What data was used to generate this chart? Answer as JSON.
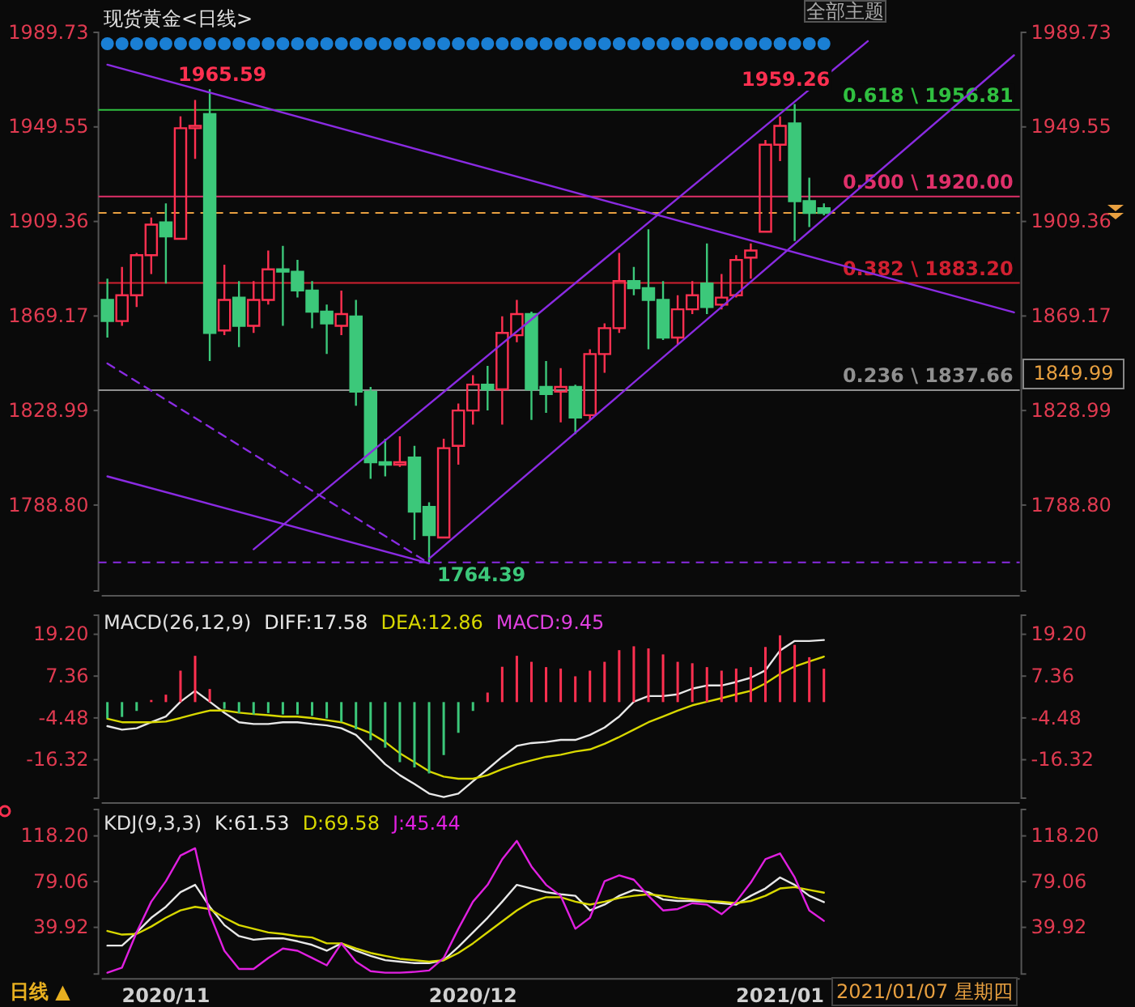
{
  "chart_data": [
    {
      "type": "candlestick",
      "title": "现货黄金<日线>",
      "tick_labels": "y",
      "categories": [
        null,
        null,
        null,
        null,
        "2020/11",
        null,
        null,
        null,
        null,
        null,
        null,
        null,
        null,
        null,
        null,
        null,
        null,
        null,
        null,
        null,
        null,
        null,
        null,
        null,
        null,
        "2020/12",
        null,
        null,
        null,
        null,
        null,
        null,
        null,
        null,
        null,
        null,
        null,
        null,
        null,
        null,
        null,
        null,
        null,
        null,
        null,
        null,
        "2021/01",
        null,
        null,
        null,
        null,
        null,
        null,
        null,
        null,
        null,
        null,
        null,
        null,
        null,
        null,
        null,
        null
      ],
      "ohlc": [
        [
          1876,
          1885,
          1860,
          1867
        ],
        [
          1867,
          1890,
          1865,
          1878
        ],
        [
          1878,
          1896,
          1873,
          1895
        ],
        [
          1895,
          1911,
          1887,
          1908
        ],
        [
          1909,
          1917,
          1883,
          1903
        ],
        [
          1902,
          1954,
          1902,
          1949
        ],
        [
          1949,
          1961,
          1936,
          1950
        ],
        [
          1955,
          1965.59,
          1850,
          1862
        ],
        [
          1863,
          1891,
          1861,
          1876
        ],
        [
          1877,
          1884,
          1856,
          1865
        ],
        [
          1865,
          1884,
          1862,
          1876
        ],
        [
          1876,
          1897,
          1874,
          1889
        ],
        [
          1889,
          1899,
          1865,
          1888
        ],
        [
          1888,
          1893,
          1877,
          1880
        ],
        [
          1880,
          1884,
          1864,
          1871
        ],
        [
          1871,
          1874,
          1853,
          1866
        ],
        [
          1865,
          1880,
          1861,
          1870
        ],
        [
          1869,
          1876,
          1831,
          1837
        ],
        [
          1837,
          1839,
          1800,
          1807
        ],
        [
          1807,
          1817,
          1801,
          1806
        ],
        [
          1806,
          1818,
          1805,
          1807
        ],
        [
          1809,
          1814,
          1774,
          1786
        ],
        [
          1788,
          1790,
          1764.39,
          1776
        ],
        [
          1775,
          1817,
          1775,
          1813
        ],
        [
          1814,
          1832,
          1806,
          1829
        ],
        [
          1829,
          1844,
          1823,
          1840
        ],
        [
          1840,
          1848,
          1829,
          1838
        ],
        [
          1838,
          1869,
          1823,
          1862
        ],
        [
          1861,
          1876,
          1858,
          1870
        ],
        [
          1870,
          1871,
          1825,
          1838
        ],
        [
          1839,
          1850,
          1828,
          1836
        ],
        [
          1837,
          1847,
          1824,
          1839
        ],
        [
          1839,
          1840,
          1819,
          1826
        ],
        [
          1827,
          1855,
          1825,
          1853
        ],
        [
          1853,
          1866,
          1845,
          1864
        ],
        [
          1864,
          1896,
          1862,
          1884
        ],
        [
          1884,
          1890,
          1878,
          1881
        ],
        [
          1881,
          1906,
          1855,
          1876
        ],
        [
          1876,
          1884,
          1859,
          1860
        ],
        [
          1860,
          1878,
          1857,
          1872
        ],
        [
          1872,
          1884,
          1870,
          1878
        ],
        [
          1883,
          1900,
          1870,
          1873
        ],
        [
          1874,
          1887,
          1872,
          1877
        ],
        [
          1878,
          1895,
          1877,
          1893
        ],
        [
          1894,
          1900,
          1885,
          1897
        ],
        [
          1905,
          1944,
          1905,
          1942
        ],
        [
          1942,
          1954,
          1935,
          1950
        ],
        [
          1951,
          1959.26,
          1901,
          1918
        ],
        [
          1918,
          1928,
          1907,
          1913
        ],
        [
          1915,
          1917,
          1912,
          1913
        ],
        null,
        null,
        null,
        null,
        null,
        null,
        null,
        null,
        null,
        null,
        null,
        null,
        null
      ],
      "colors": [
        "#3cc87a",
        "#ff3050",
        "#ff3050",
        "#ff3050",
        "#3cc87a",
        "#ff3050",
        "#ff3050",
        "#3cc87a",
        "#ff3050",
        "#3cc87a",
        "#ff3050",
        "#ff3050",
        "#3cc87a",
        "#3cc87a",
        "#3cc87a",
        "#3cc87a",
        "#ff3050",
        "#3cc87a",
        "#3cc87a",
        "#3cc87a",
        "#ff3050",
        "#3cc87a",
        "#3cc87a",
        "#ff3050",
        "#ff3050",
        "#ff3050",
        "#3cc87a",
        "#ff3050",
        "#ff3050",
        "#3cc87a",
        "#3cc87a",
        "#ff3050",
        "#3cc87a",
        "#ff3050",
        "#ff3050",
        "#ff3050",
        "#3cc87a",
        "#3cc87a",
        "#3cc87a",
        "#ff3050",
        "#ff3050",
        "#3cc87a",
        "#ff3050",
        "#ff3050",
        "#ff3050",
        "#ff3050",
        "#ff3050",
        "#3cc87a",
        "#3cc87a",
        "#3cc87a",
        null,
        null,
        null,
        null,
        null,
        null,
        null,
        null,
        null,
        null,
        null,
        null,
        null
      ],
      "series": [
        {
          "type": "line",
          "color": "#8a2be2",
          "values": [
            1976,
            null,
            null,
            null,
            null,
            null,
            null,
            null,
            null,
            null,
            null,
            null,
            null,
            null,
            null,
            null,
            null,
            null,
            null,
            null,
            null,
            null,
            null,
            null,
            null,
            null,
            null,
            null,
            null,
            null,
            null,
            null,
            null,
            null,
            null,
            null,
            null,
            null,
            null,
            null,
            null,
            null,
            null,
            null,
            null,
            null,
            null,
            null,
            null,
            null,
            null,
            null,
            null,
            null,
            null,
            null,
            null,
            null,
            null,
            null,
            null,
            null,
            1870.7
          ]
        },
        {
          "type": "line",
          "color": "#8a2be2",
          "values": [
            1801,
            null,
            null,
            null,
            null,
            null,
            null,
            null,
            null,
            null,
            null,
            null,
            null,
            null,
            null,
            null,
            null,
            null,
            null,
            null,
            null,
            null,
            1764,
            null,
            null,
            null,
            null,
            null,
            null,
            null,
            null,
            null,
            null,
            null,
            null,
            null,
            null,
            null,
            null,
            null,
            null,
            null,
            null,
            null,
            null,
            null,
            null,
            null,
            null,
            null,
            null,
            null,
            null,
            null,
            null,
            null,
            null,
            null,
            null,
            null,
            null,
            null,
            null
          ]
        },
        {
          "type": "line",
          "color": "#8a2be2",
          "line_style": "dashed",
          "values": [
            1849,
            null,
            null,
            null,
            null,
            null,
            null,
            null,
            null,
            null,
            null,
            null,
            null,
            null,
            null,
            null,
            null,
            null,
            null,
            null,
            null,
            null,
            1764,
            null,
            null,
            null,
            null,
            null,
            null,
            null,
            null,
            null,
            null,
            null,
            null,
            null,
            null,
            null,
            null,
            null,
            null,
            null,
            null,
            null,
            null,
            null,
            null,
            null,
            null,
            null,
            null,
            null,
            null,
            null,
            null,
            null,
            null,
            null,
            null,
            null,
            null,
            null,
            null
          ]
        },
        {
          "type": "line",
          "color": "#8a2be2",
          "values": [
            null,
            null,
            null,
            null,
            null,
            null,
            null,
            null,
            null,
            null,
            1770,
            null,
            null,
            null,
            null,
            null,
            null,
            null,
            null,
            null,
            null,
            null,
            null,
            null,
            null,
            null,
            null,
            null,
            null,
            null,
            null,
            null,
            null,
            null,
            null,
            null,
            null,
            null,
            null,
            null,
            null,
            null,
            null,
            null,
            null,
            null,
            null,
            null,
            null,
            null,
            null,
            null,
            1986,
            null,
            null,
            null,
            null,
            null,
            null,
            null,
            null,
            null,
            null
          ]
        },
        {
          "type": "line",
          "color": "#8a2be2",
          "values": [
            null,
            null,
            null,
            null,
            null,
            null,
            null,
            null,
            null,
            null,
            null,
            null,
            null,
            null,
            null,
            null,
            null,
            null,
            null,
            null,
            null,
            null,
            1766,
            null,
            null,
            null,
            null,
            null,
            null,
            null,
            null,
            null,
            null,
            null,
            null,
            null,
            null,
            null,
            null,
            null,
            null,
            null,
            null,
            null,
            null,
            null,
            null,
            null,
            null,
            null,
            null,
            null,
            null,
            null,
            null,
            null,
            null,
            null,
            null,
            null,
            null,
            null,
            1980
          ]
        }
      ],
      "ylim": [
        1752.3,
        1989.73
      ],
      "yticks": [
        1989.73,
        1949.55,
        1909.36,
        1869.17,
        1828.99,
        {
          "value": 1788.8,
          "label": "1788.80"
        }
      ],
      "y2lim": [
        1752.3,
        1989.73
      ],
      "y2ticks": [
        1989.73,
        1949.55,
        1909.36,
        1869.17,
        1828.99,
        {
          "value": 1788.8,
          "label": "1788.80"
        }
      ],
      "ref_lines": [
        {
          "axis": "y",
          "value": 1913,
          "color": "#e8a040",
          "line_style": "dashed"
        },
        {
          "axis": "y",
          "value": 1956.81,
          "label": "0.618 \\ 1956.81",
          "color": "#30c040"
        },
        {
          "axis": "y",
          "value": 1920,
          "label": "0.500 \\ 1920.00",
          "color": "#e0306a"
        },
        {
          "axis": "y",
          "value": 1883.2,
          "label": "0.382 \\ 1883.20",
          "color": "#d02030"
        },
        {
          "axis": "y",
          "value": 1837.66,
          "label": "0.236 \\ 1837.66",
          "color": "#909090"
        },
        {
          "axis": "y",
          "value": 1764.39,
          "color": "#8a2be2",
          "line_style": "dashed"
        }
      ],
      "annotations": [
        "全部主题",
        "1965.59",
        "1959.26",
        "1764.39",
        "1849.99"
      ]
    },
    {
      "type": "line",
      "title": "MACD(26,12,9)",
      "tick_labels": "y",
      "legend": "top left",
      "categories": [
        null,
        null,
        null,
        null,
        "2020/11",
        null,
        null,
        null,
        null,
        null,
        null,
        null,
        null,
        null,
        null,
        null,
        null,
        null,
        null,
        null,
        null,
        null,
        null,
        null,
        null,
        "2020/12",
        null,
        null,
        null,
        null,
        null,
        null,
        null,
        null,
        null,
        null,
        null,
        null,
        null,
        null,
        null,
        null,
        null,
        null,
        null,
        null,
        "2021/01",
        null,
        null,
        null,
        null,
        null,
        null,
        null,
        null,
        null,
        null,
        null,
        null,
        null,
        null,
        null,
        null
      ],
      "series": [
        {
          "name": "DIFF:17.58",
          "type": "line",
          "color": "#e8e8e8",
          "values": [
            -6.8,
            -7.8,
            -7.4,
            -5.7,
            -4.1,
            0.1,
            3.2,
            0.1,
            -3.0,
            -5.7,
            -6.2,
            -6.2,
            -5.7,
            -5.7,
            -6.2,
            -6.6,
            -7.4,
            -9.3,
            -13.4,
            -17.6,
            -20.7,
            -23.2,
            -25.9,
            -26.9,
            -25.9,
            -22.4,
            -19.0,
            -15.5,
            -12.4,
            -11.6,
            -11.3,
            -10.7,
            -10.7,
            -9.3,
            -7.2,
            -4.1,
            0.1,
            1.7,
            1.7,
            2.2,
            3.8,
            4.7,
            4.7,
            5.7,
            6.9,
            9.0,
            14.6,
            17.3,
            17.3,
            17.58,
            null,
            null,
            null,
            null,
            null,
            null,
            null,
            null,
            null,
            null,
            null,
            null,
            null
          ]
        },
        {
          "name": "DEA:12.86",
          "type": "line",
          "color": "#d8d800",
          "values": [
            -4.7,
            -5.7,
            -5.7,
            -5.7,
            -5.5,
            -4.5,
            -3.4,
            -2.4,
            -2.4,
            -3.0,
            -3.4,
            -3.7,
            -4.1,
            -4.1,
            -4.5,
            -5.1,
            -5.7,
            -7.2,
            -8.8,
            -11.3,
            -14.5,
            -17.0,
            -19.6,
            -21.1,
            -21.7,
            -21.7,
            -20.7,
            -19.0,
            -17.6,
            -16.5,
            -15.5,
            -14.9,
            -14.0,
            -13.4,
            -11.8,
            -9.9,
            -7.8,
            -5.7,
            -4.1,
            -2.4,
            -0.9,
            0.1,
            1.1,
            2.2,
            3.2,
            5.3,
            8.0,
            10.1,
            11.5,
            12.86,
            null,
            null,
            null,
            null,
            null,
            null,
            null,
            null,
            null,
            null,
            null,
            null,
            null
          ]
        },
        {
          "name": "MACD:9.45",
          "type": "bar",
          "color": "#e040e0",
          "values": [
            -4.6,
            -4.2,
            -2.5,
            0.6,
            2.1,
            8.9,
            13.1,
            3.7,
            -1.9,
            -3.1,
            -3.5,
            -3.1,
            -3.5,
            -3.5,
            -3.9,
            -4.6,
            -5.6,
            -7.7,
            -10.8,
            -12.9,
            -17.0,
            -18.5,
            -20.2,
            -15.0,
            -8.7,
            -2.5,
            2.7,
            10.0,
            13.1,
            11.4,
            9.9,
            9.5,
            7.3,
            8.9,
            11.4,
            14.7,
            15.8,
            15.2,
            13.5,
            11.4,
            11.0,
            9.9,
            8.9,
            9.5,
            9.9,
            15.6,
            18.9,
            16.2,
            12.7,
            9.45,
            null,
            null,
            null,
            null,
            null,
            null,
            null,
            null,
            null,
            null,
            null,
            null,
            null
          ],
          "colors": [
            "#3cc87a",
            "#3cc87a",
            "#3cc87a",
            "#ff3050",
            "#ff3050",
            "#ff3050",
            "#ff3050",
            "#ff3050",
            "#3cc87a",
            "#3cc87a",
            "#3cc87a",
            "#3cc87a",
            "#3cc87a",
            "#3cc87a",
            "#3cc87a",
            "#3cc87a",
            "#3cc87a",
            "#3cc87a",
            "#3cc87a",
            "#3cc87a",
            "#3cc87a",
            "#3cc87a",
            "#3cc87a",
            "#3cc87a",
            "#3cc87a",
            "#3cc87a",
            "#ff3050",
            "#ff3050",
            "#ff3050",
            "#ff3050",
            "#ff3050",
            "#ff3050",
            "#ff3050",
            "#ff3050",
            "#ff3050",
            "#ff3050",
            "#ff3050",
            "#ff3050",
            "#ff3050",
            "#ff3050",
            "#ff3050",
            "#ff3050",
            "#ff3050",
            "#ff3050",
            "#ff3050",
            "#ff3050",
            "#ff3050",
            "#ff3050",
            "#ff3050",
            "#ff3050",
            null,
            null,
            null,
            null,
            null,
            null,
            null,
            null,
            null,
            null,
            null,
            null,
            null
          ]
        }
      ],
      "ylim": [
        -27.2,
        24.6
      ],
      "yticks": [
        {
          "value": 19.2,
          "label": "19.20"
        },
        7.36,
        -4.48,
        -16.32
      ],
      "y2lim": [
        -27.2,
        24.6
      ],
      "y2ticks": [
        {
          "value": 19.2,
          "label": "19.20"
        },
        7.36,
        -4.48,
        -16.32
      ]
    },
    {
      "type": "line",
      "title": "KDJ(9,3,3)",
      "legend": "top left",
      "categories": [
        null,
        null,
        null,
        null,
        "2020/11",
        null,
        null,
        null,
        null,
        null,
        null,
        null,
        null,
        null,
        null,
        null,
        null,
        null,
        null,
        null,
        null,
        null,
        null,
        null,
        null,
        "2020/12",
        null,
        null,
        null,
        null,
        null,
        null,
        null,
        null,
        null,
        null,
        null,
        null,
        null,
        null,
        null,
        null,
        null,
        null,
        null,
        null,
        "2021/01",
        null,
        null,
        null,
        null,
        null,
        null,
        null,
        null,
        null,
        null,
        null,
        null,
        null,
        null,
        null,
        null
      ],
      "series": [
        {
          "name": "K:61.53",
          "color": "#e8e8e8",
          "values": [
            24.3,
            24.3,
            35.6,
            48.1,
            57.5,
            70.0,
            76.3,
            57.5,
            41.8,
            32.4,
            29.3,
            30.5,
            30.5,
            28.0,
            24.9,
            19.9,
            26.2,
            19.9,
            15.5,
            11.8,
            10.5,
            9.3,
            9.3,
            11.8,
            23.1,
            35.6,
            48.1,
            61.9,
            76.3,
            73.2,
            70.0,
            68.2,
            66.9,
            54.4,
            59.4,
            66.9,
            71.9,
            70.0,
            63.8,
            62.5,
            62.5,
            61.9,
            60.6,
            59.4,
            66.9,
            73.2,
            82.6,
            76.3,
            66.9,
            61.53,
            null,
            null,
            null,
            null,
            null,
            null,
            null,
            null,
            null,
            null,
            null,
            null,
            null
          ]
        },
        {
          "name": "D:69.58",
          "color": "#d8d800",
          "values": [
            36.8,
            33.7,
            34.3,
            40.6,
            48.1,
            54.4,
            57.5,
            55.6,
            48.1,
            41.8,
            38.7,
            35.6,
            34.3,
            32.4,
            31.2,
            26.2,
            26.2,
            21.8,
            18.0,
            15.5,
            13.0,
            11.8,
            10.5,
            11.8,
            18.0,
            26.2,
            35.6,
            45.0,
            54.4,
            61.9,
            65.7,
            65.7,
            61.9,
            59.4,
            61.9,
            65.0,
            66.9,
            68.2,
            66.9,
            65.0,
            63.8,
            62.5,
            61.9,
            60.6,
            62.5,
            66.9,
            73.2,
            74.4,
            71.9,
            69.58,
            null,
            null,
            null,
            null,
            null,
            null,
            null,
            null,
            null,
            null,
            null,
            null,
            null
          ]
        },
        {
          "name": "J:45.44",
          "color": "#e020e0",
          "values": [
            1.1,
            5.5,
            35.6,
            61.9,
            79.4,
            101.4,
            107.6,
            51.2,
            19.9,
            4.3,
            4.3,
            13.7,
            21.8,
            19.9,
            13.7,
            7.4,
            26.2,
            10.5,
            2.4,
            1.1,
            1.1,
            1.8,
            3.0,
            13.7,
            38.7,
            61.9,
            76.3,
            98.2,
            113.9,
            92.0,
            76.3,
            66.9,
            38.7,
            48.1,
            79.4,
            84.4,
            80.7,
            66.9,
            54.4,
            55.6,
            60.6,
            59.4,
            51.2,
            61.9,
            78.2,
            98.2,
            103.2,
            82.6,
            54.4,
            45.44,
            null,
            null,
            null,
            null,
            null,
            null,
            null,
            null,
            null,
            null,
            null,
            null,
            null
          ]
        }
      ],
      "ylim": [
        0,
        140.8
      ],
      "yticks": [
        {
          "value": 118.2,
          "label": "118.20"
        },
        79.06,
        39.92
      ],
      "y2lim": [
        0,
        140.8
      ],
      "y2ticks": [
        {
          "value": 118.2,
          "label": "118.20"
        },
        79.06,
        39.92
      ],
      "annotations": [
        "日线 ▲",
        "2021/01/07 星期四"
      ]
    }
  ]
}
